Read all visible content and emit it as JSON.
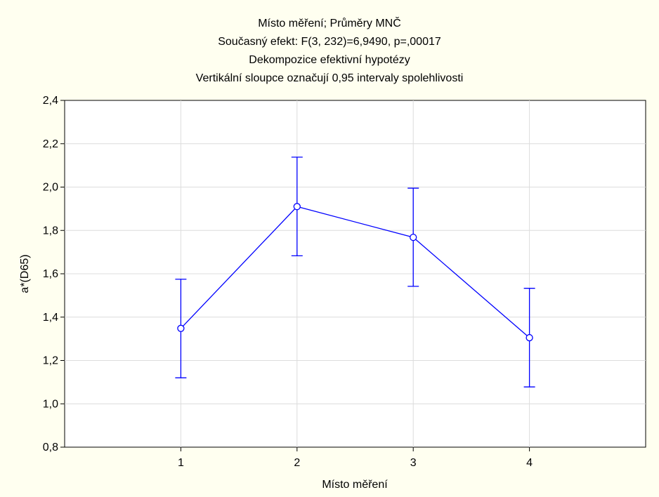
{
  "chart_data": {
    "type": "line",
    "title_lines": [
      "Místo měření; Průměry MNČ",
      "Současný efekt: F(3, 232)=6,9490, p=,00017",
      "Dekompozice efektivní hypotézy",
      "Vertikální sloupce označují 0,95 intervaly spolehlivosti"
    ],
    "xlabel": "Místo měření",
    "ylabel": "a*(D65)",
    "categories": [
      "1",
      "2",
      "3",
      "4"
    ],
    "xlim": [
      0,
      5
    ],
    "ylim": [
      0.8,
      2.4
    ],
    "yticks": [
      0.8,
      1.0,
      1.2,
      1.4,
      1.6,
      1.8,
      2.0,
      2.2,
      2.4
    ],
    "ytick_labels": [
      "0,8",
      "1,0",
      "1,2",
      "1,4",
      "1,6",
      "1,8",
      "2,0",
      "2,2",
      "2,4"
    ],
    "grid": true,
    "series": [
      {
        "values": [
          1.348,
          1.91,
          1.768,
          1.305
        ],
        "ci_lower": [
          1.12,
          1.683,
          1.542,
          1.078
        ],
        "ci_upper": [
          1.575,
          2.138,
          1.995,
          1.533
        ],
        "color": "#0000ff"
      }
    ],
    "background_color": "#fffff0",
    "plot_background_color": "#ffffff",
    "grid_color": "#dcdcdc"
  }
}
